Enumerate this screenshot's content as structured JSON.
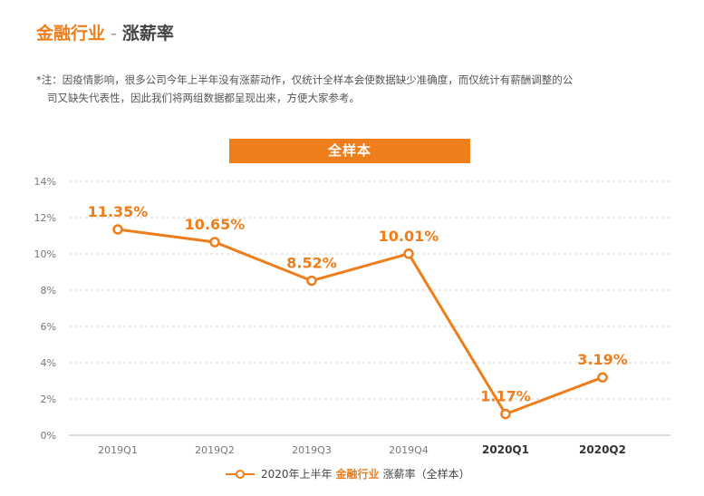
{
  "header": {
    "title_main": "金融行业",
    "title_sep": "-",
    "title_sub": "涨薪率"
  },
  "note": {
    "line1": "*注：因疫情影响，很多公司今年上半年没有涨薪动作，仅统计全样本会使数据缺少准确度，而仅统计有薪酬调整的公",
    "line2": "司又缺失代表性，因此我们将两组数据都呈现出来，方便大家参考。"
  },
  "banner": {
    "label": "全样本"
  },
  "legend": {
    "prefix": "2020年上半年",
    "highlight": "金融行业",
    "suffix": "涨薪率（全样本）"
  },
  "colors": {
    "accent": "#EE7D1B",
    "grid": "#D0D0D0",
    "axis_text": "#777777"
  },
  "chart_data": {
    "type": "line",
    "title": "全样本",
    "categories": [
      "2019Q1",
      "2019Q2",
      "2019Q3",
      "2019Q4",
      "2020Q1",
      "2020Q2"
    ],
    "bold_categories": [
      "2020Q1",
      "2020Q2"
    ],
    "series": [
      {
        "name": "2020年上半年 金融行业 涨薪率（全样本）",
        "values": [
          11.35,
          10.65,
          8.52,
          10.01,
          1.17,
          3.19
        ],
        "labels": [
          "11.35%",
          "10.65%",
          "8.52%",
          "10.01%",
          "1.17%",
          "3.19%"
        ]
      }
    ],
    "yticks": [
      "0%",
      "2%",
      "4%",
      "6%",
      "8%",
      "10%",
      "12%",
      "14%"
    ],
    "ylim": [
      0,
      14
    ],
    "grid": true,
    "legend_position": "bottom"
  }
}
